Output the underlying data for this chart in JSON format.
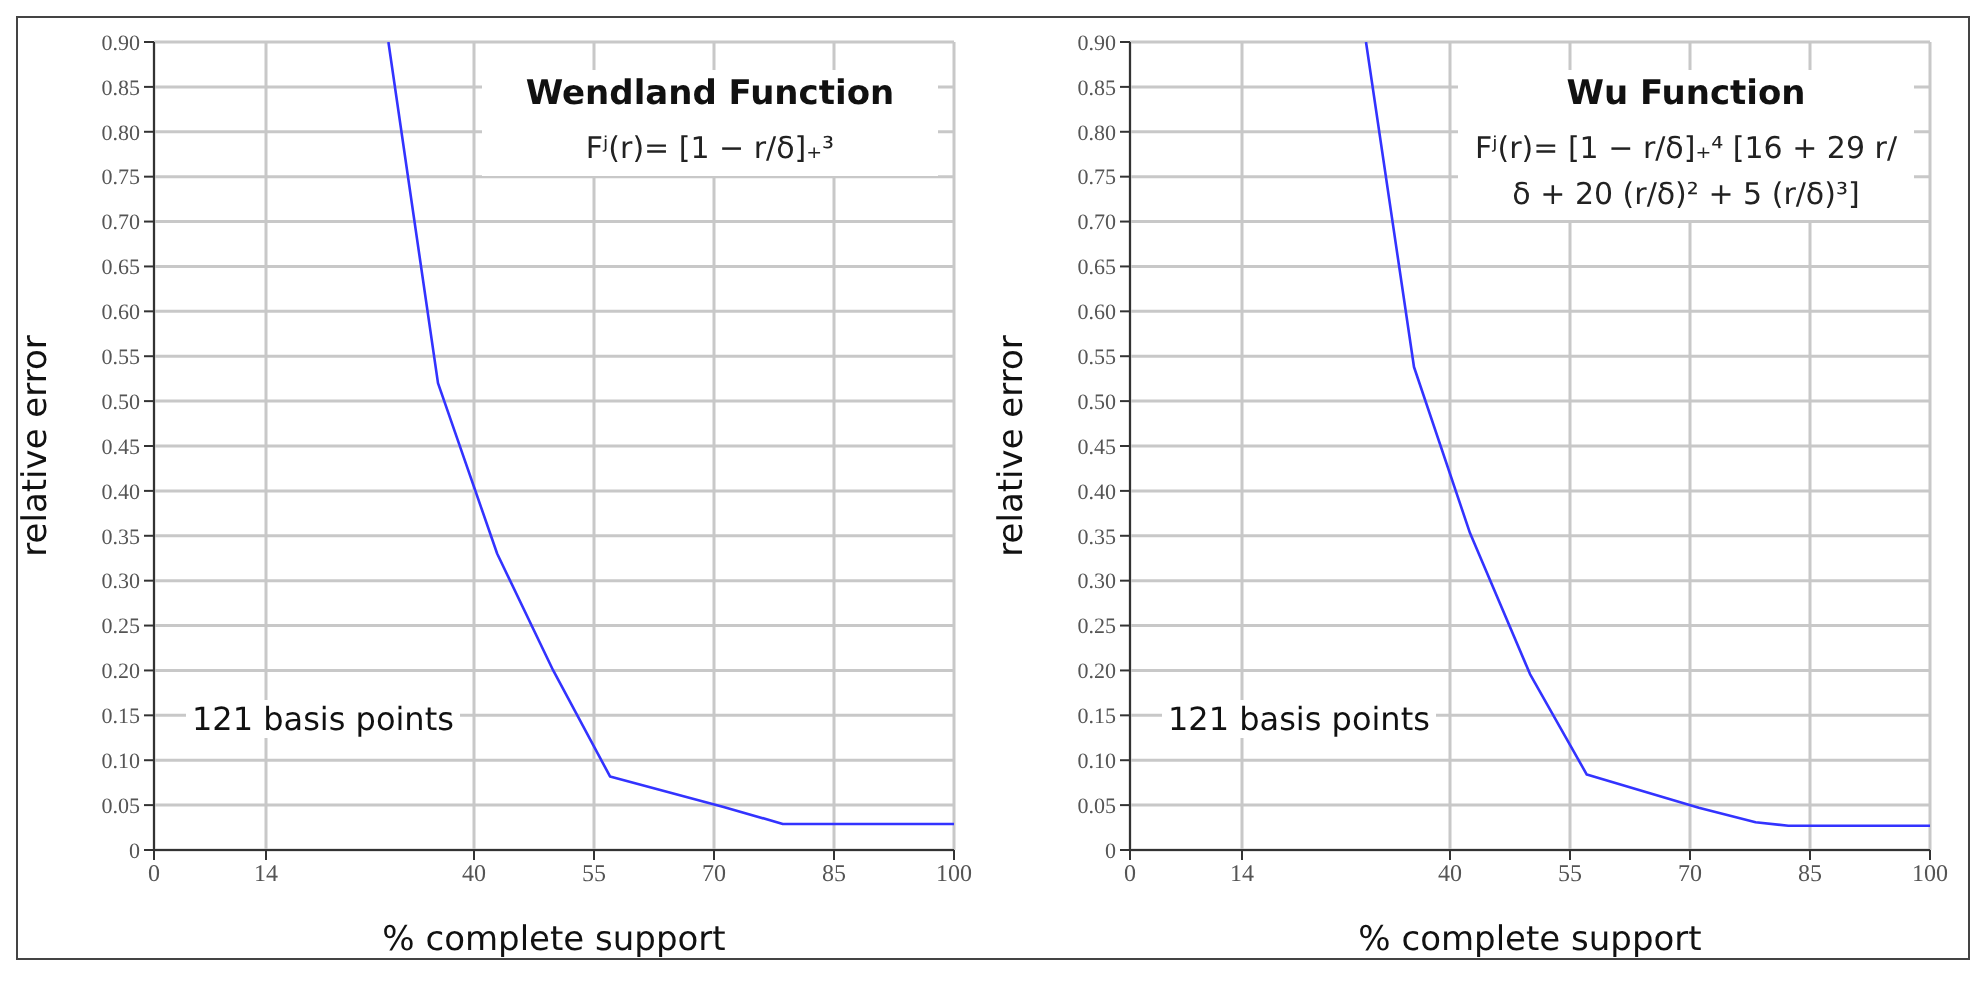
{
  "chart_data": [
    {
      "type": "line",
      "title": "Wendland Function",
      "xlabel": "% complete support",
      "ylabel": "relative error",
      "annotations": [
        "Fʲ(r)= [1 − r/δ]₊³",
        "121 basis points"
      ],
      "xlim": [
        0,
        100
      ],
      "xticks": [
        0,
        14,
        40,
        55,
        70,
        85,
        100
      ],
      "ylim": [
        0,
        0.9
      ],
      "yticks": [
        0,
        {
          "value": 0.05,
          "label": "0.05"
        },
        {
          "value": 0.1,
          "label": "0.10"
        },
        {
          "value": 0.15,
          "label": "0.15"
        },
        {
          "value": 0.2,
          "label": "0.20"
        },
        {
          "value": 0.25,
          "label": "0.25"
        },
        {
          "value": 0.3,
          "label": "0.30"
        },
        {
          "value": 0.35,
          "label": "0.35"
        },
        {
          "value": 0.4,
          "label": "0.40"
        },
        {
          "value": 0.45,
          "label": "0.45"
        },
        {
          "value": 0.5,
          "label": "0.50"
        },
        {
          "value": 0.55,
          "label": "0.55"
        },
        {
          "value": 0.6,
          "label": "0.60"
        },
        {
          "value": 0.65,
          "label": "0.65"
        },
        {
          "value": 0.7,
          "label": "0.70"
        },
        {
          "value": 0.75,
          "label": "0.75"
        },
        {
          "value": 0.8,
          "label": "0.80"
        },
        {
          "value": 0.85,
          "label": "0.85"
        },
        {
          "value": 0.9,
          "label": "0.90"
        }
      ],
      "grid": true,
      "x": [
        29.3,
        35.5,
        42.9,
        49.9,
        57,
        71.2,
        78.6,
        100
      ],
      "series": [
        {
          "color": "#3333ff",
          "values": [
            0.9,
            0.52,
            0.33,
            0.2,
            0.082,
            0.048,
            0.029,
            0.029
          ]
        }
      ]
    },
    {
      "type": "line",
      "title": "Wu Function",
      "xlabel": "% complete support",
      "ylabel": "relative error",
      "annotations": [
        "Fʲ(r)= [1 − r/δ]₊⁴ [16 + 29 r/δ + 20 (r/δ)² + 5 (r/δ)³]",
        "121 basis points"
      ],
      "xlim": [
        0,
        100
      ],
      "xticks": [
        0,
        14,
        40,
        55,
        70,
        85,
        100
      ],
      "ylim": [
        0,
        0.9
      ],
      "yticks": [
        0,
        {
          "value": 0.05,
          "label": "0.05"
        },
        {
          "value": 0.1,
          "label": "0.10"
        },
        {
          "value": 0.15,
          "label": "0.15"
        },
        {
          "value": 0.2,
          "label": "0.20"
        },
        {
          "value": 0.25,
          "label": "0.25"
        },
        {
          "value": 0.3,
          "label": "0.30"
        },
        {
          "value": 0.35,
          "label": "0.35"
        },
        {
          "value": 0.4,
          "label": "0.40"
        },
        {
          "value": 0.45,
          "label": "0.45"
        },
        {
          "value": 0.5,
          "label": "0.50"
        },
        {
          "value": 0.55,
          "label": "0.55"
        },
        {
          "value": 0.6,
          "label": "0.60"
        },
        {
          "value": 0.65,
          "label": "0.65"
        },
        {
          "value": 0.7,
          "label": "0.70"
        },
        {
          "value": 0.75,
          "label": "0.75"
        },
        {
          "value": 0.8,
          "label": "0.80"
        },
        {
          "value": 0.85,
          "label": "0.85"
        },
        {
          "value": 0.9,
          "label": "0.90"
        }
      ],
      "grid": true,
      "x": [
        29.5,
        35.5,
        42.5,
        50,
        57.1,
        71.1,
        78.2,
        82.3,
        100
      ],
      "series": [
        {
          "color": "#3333ff",
          "values": [
            0.9,
            0.538,
            0.353,
            0.196,
            0.084,
            0.047,
            0.031,
            0.027,
            0.027
          ]
        }
      ]
    }
  ]
}
